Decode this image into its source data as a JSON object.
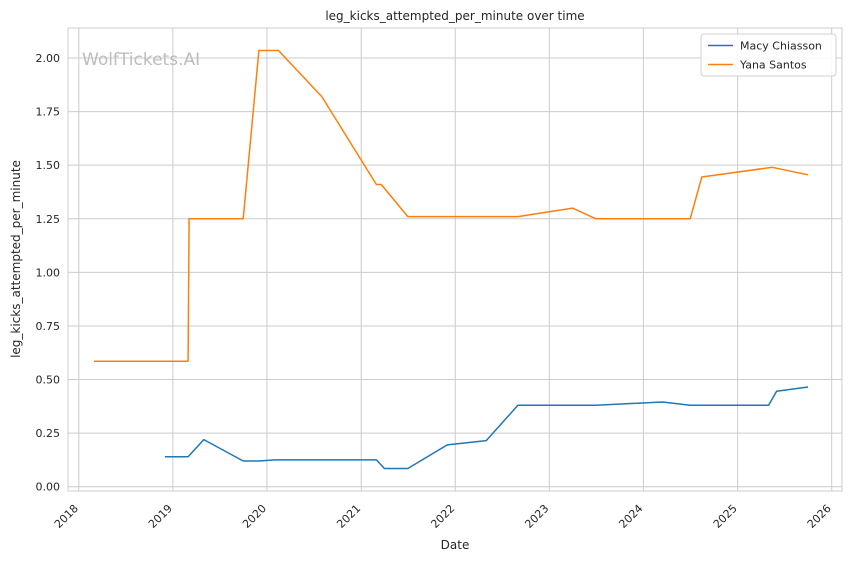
{
  "chart_data": {
    "type": "line",
    "title": "leg_kicks_attempted_per_minute over time",
    "xlabel": "Date",
    "ylabel": "leg_kicks_attempted_per_minute",
    "watermark": "WolfTickets.AI",
    "xlim": [
      "2017-11-20",
      "2026-02-10"
    ],
    "ylim": [
      -0.02,
      2.14
    ],
    "x_ticks": [
      "2018-01-01",
      "2019-01-01",
      "2020-01-01",
      "2021-01-01",
      "2022-01-01",
      "2023-01-01",
      "2024-01-01",
      "2025-01-01",
      "2026-01-01"
    ],
    "x_tick_labels": [
      "2018",
      "2019",
      "2020",
      "2021",
      "2022",
      "2023",
      "2024",
      "2025",
      "2026"
    ],
    "y_ticks": [
      0.0,
      0.25,
      0.5,
      0.75,
      1.0,
      1.25,
      1.5,
      1.75,
      2.0
    ],
    "y_tick_labels": [
      "0.00",
      "0.25",
      "0.50",
      "0.75",
      "1.00",
      "1.25",
      "1.50",
      "1.75",
      "2.00"
    ],
    "grid": true,
    "legend_position": "top-right",
    "series": [
      {
        "name": "Macy Chiasson",
        "color": "#1f77b4",
        "points": [
          [
            "2018-12-01",
            0.14
          ],
          [
            "2019-03-01",
            0.14
          ],
          [
            "2019-05-01",
            0.22
          ],
          [
            "2019-10-01",
            0.12
          ],
          [
            "2019-12-01",
            0.12
          ],
          [
            "2020-02-01",
            0.125
          ],
          [
            "2021-03-01",
            0.125
          ],
          [
            "2021-04-01",
            0.085
          ],
          [
            "2021-07-01",
            0.085
          ],
          [
            "2021-12-01",
            0.195
          ],
          [
            "2022-05-01",
            0.215
          ],
          [
            "2022-09-01",
            0.38
          ],
          [
            "2023-07-01",
            0.38
          ],
          [
            "2024-03-15",
            0.395
          ],
          [
            "2024-07-01",
            0.38
          ],
          [
            "2025-05-01",
            0.38
          ],
          [
            "2025-06-01",
            0.445
          ],
          [
            "2025-10-01",
            0.465
          ]
        ]
      },
      {
        "name": "Yana Santos",
        "color": "#ff7f0e",
        "points": [
          [
            "2018-03-01",
            0.585
          ],
          [
            "2019-03-01",
            0.585
          ],
          [
            "2019-03-05",
            1.25
          ],
          [
            "2019-10-01",
            1.25
          ],
          [
            "2019-12-01",
            2.035
          ],
          [
            "2020-02-15",
            2.035
          ],
          [
            "2020-08-01",
            1.82
          ],
          [
            "2021-03-01",
            1.41
          ],
          [
            "2021-03-20",
            1.41
          ],
          [
            "2021-07-01",
            1.26
          ],
          [
            "2022-09-01",
            1.26
          ],
          [
            "2023-04-01",
            1.3
          ],
          [
            "2023-07-01",
            1.25
          ],
          [
            "2024-07-01",
            1.25
          ],
          [
            "2024-08-15",
            1.445
          ],
          [
            "2025-05-15",
            1.49
          ],
          [
            "2025-10-01",
            1.455
          ]
        ]
      }
    ]
  }
}
